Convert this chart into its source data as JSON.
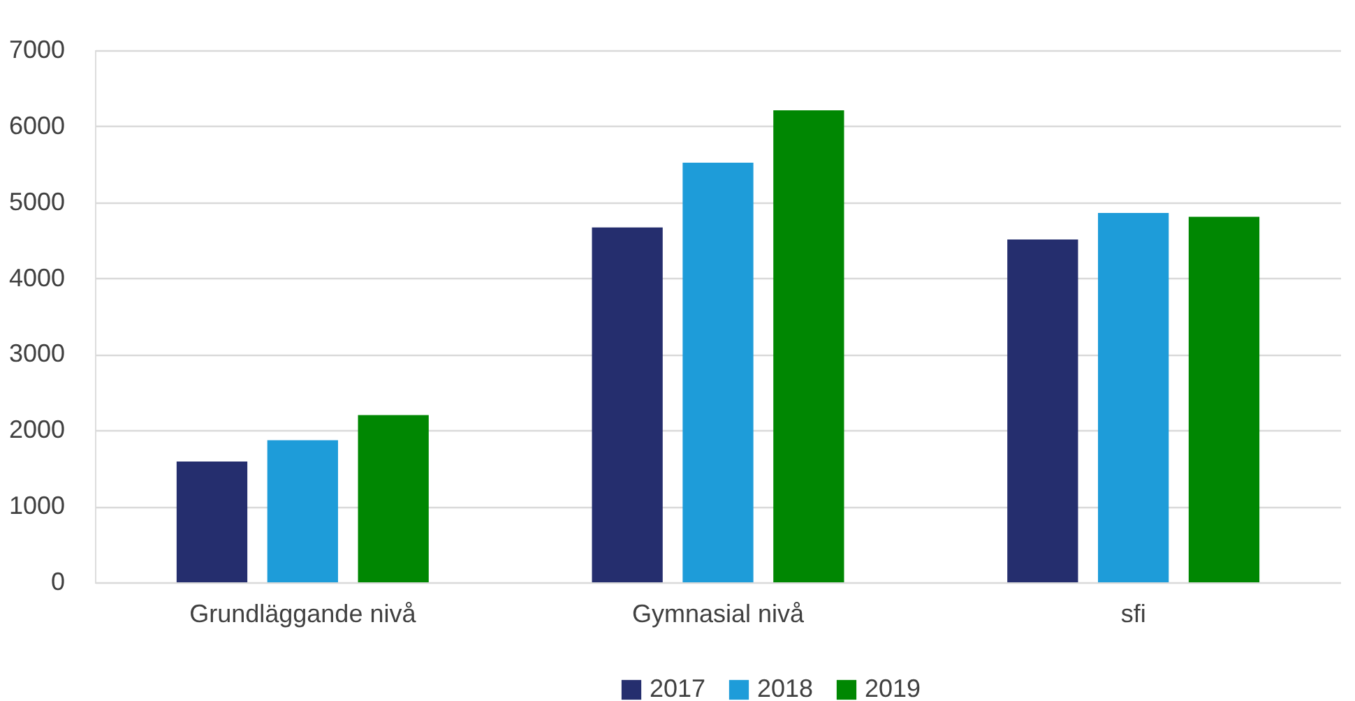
{
  "chart_data": {
    "type": "bar",
    "categories": [
      "Grundläggande nivå",
      "Gymnasial nivå",
      "sfi"
    ],
    "series": [
      {
        "name": "2017",
        "color": "#252e6e",
        "values": [
          1590,
          4670,
          4510
        ]
      },
      {
        "name": "2018",
        "color": "#1e9cd9",
        "values": [
          1870,
          5520,
          4860
        ]
      },
      {
        "name": "2019",
        "color": "#008702",
        "values": [
          2200,
          6210,
          4810
        ]
      }
    ],
    "ylim": [
      0,
      7000
    ],
    "yticks": [
      0,
      1000,
      2000,
      3000,
      4000,
      5000,
      6000,
      7000
    ],
    "grid": "y",
    "legend": "bottom"
  }
}
